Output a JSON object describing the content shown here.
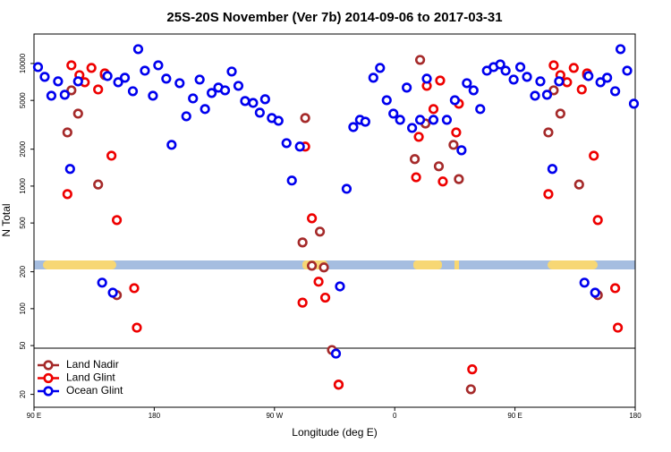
{
  "chart_data": {
    "type": "scatter",
    "title": "25S-20S November (Ver 7b)   2014-09-06 to 2017-03-31",
    "xlabel": "Longitude (deg E)",
    "ylabel": "N Total",
    "xlim": [
      90,
      540
    ],
    "xticks": [
      {
        "value": 90,
        "label": "90 E"
      },
      180,
      {
        "value": 270,
        "label": "90 W"
      },
      {
        "value": 360,
        "label": "0"
      },
      {
        "value": 450,
        "label": "90 E"
      },
      {
        "value": 540,
        "label": "180"
      }
    ],
    "ylim": [
      15.7,
      17400
    ],
    "log_y": true,
    "yticks": [
      20,
      50,
      100,
      200,
      500,
      1000,
      2000,
      5000,
      10000
    ],
    "legend": "lower left",
    "series": [
      {
        "name": "Land Nadir",
        "color": "#a52a2a",
        "x": [
          115,
          118,
          123,
          138,
          143,
          152,
          291,
          293,
          298,
          304,
          307,
          313,
          318,
          375,
          379,
          383,
          393,
          404,
          408,
          417,
          475,
          479,
          484,
          498,
          504,
          512
        ],
        "values": [
          2740,
          6040,
          3900,
          1030,
          8040,
          129,
          347,
          3590,
          224,
          425,
          217,
          46,
          24,
          1660,
          10700,
          3240,
          1450,
          2170,
          1140,
          22,
          2740,
          6040,
          3900,
          1030,
          8040,
          129
        ]
      },
      {
        "name": "Land Glint",
        "color": "#ee0000",
        "x": [
          115,
          118,
          124,
          128,
          133,
          138,
          143,
          148,
          152,
          165,
          167,
          291,
          293,
          298,
          303,
          308,
          318,
          376,
          378,
          384,
          389,
          394,
          396,
          406,
          408,
          418,
          475,
          479,
          484,
          489,
          494,
          500,
          504,
          509,
          512,
          525,
          527
        ],
        "values": [
          860,
          9670,
          8040,
          7030,
          9200,
          6140,
          8310,
          1770,
          528,
          147,
          70,
          112,
          2100,
          546,
          166,
          123,
          24,
          1180,
          2520,
          6570,
          4250,
          7260,
          1090,
          2740,
          4700,
          32,
          860,
          9670,
          8040,
          7030,
          9200,
          6140,
          8310,
          1770,
          528,
          147,
          70
        ]
      },
      {
        "name": "Ocean Glint",
        "color": "#0000ee",
        "x": [
          93,
          98,
          103,
          108,
          113,
          117,
          123,
          141,
          145,
          149,
          153,
          158,
          164,
          168,
          173,
          179,
          183,
          189,
          193,
          199,
          204,
          209,
          214,
          218,
          223,
          228,
          233,
          238,
          243,
          248,
          254,
          259,
          263,
          268,
          273,
          279,
          283,
          289,
          316,
          319,
          324,
          329,
          334,
          338,
          344,
          349,
          354,
          359,
          364,
          369,
          373,
          379,
          384,
          389,
          399,
          405,
          410,
          414,
          419,
          424,
          429,
          434,
          439,
          443,
          449,
          454,
          459,
          465,
          469,
          474,
          478,
          483,
          502,
          505,
          510,
          514,
          519,
          525,
          529,
          534,
          539
        ],
        "values": [
          9350,
          7780,
          5460,
          7150,
          5560,
          1380,
          7150,
          163,
          7900,
          135,
          7030,
          7650,
          5940,
          13090,
          8740,
          5460,
          9670,
          7520,
          2170,
          6910,
          3710,
          5190,
          7390,
          4250,
          5750,
          6360,
          6040,
          8600,
          6570,
          4940,
          4770,
          3970,
          5110,
          3590,
          3410,
          2240,
          1110,
          2100,
          43,
          152,
          950,
          3030,
          3470,
          3350,
          7650,
          9200,
          5020,
          3900,
          3470,
          6360,
          2980,
          3470,
          7520,
          3470,
          3470,
          5020,
          1960,
          6910,
          6040,
          4250,
          8740,
          9350,
          9830,
          8740,
          7390,
          9350,
          7780,
          5460,
          7150,
          5560,
          1380,
          7150,
          163,
          7900,
          135,
          7030,
          7650,
          5940,
          13090,
          8740,
          4700
        ]
      }
    ]
  }
}
